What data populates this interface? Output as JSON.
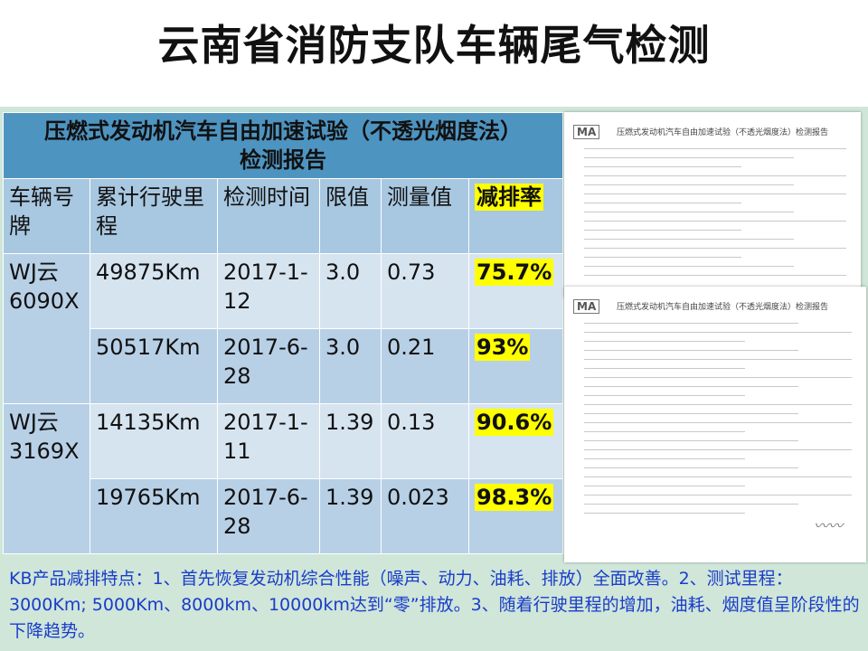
{
  "slide": {
    "title": "云南省消防支队车辆尾气检测"
  },
  "table": {
    "header_line1": "压燃式发动机汽车自由加速试验（不透光烟度法）",
    "header_line2": "检测报告",
    "columns": [
      "车辆号牌",
      "累计行驶里程",
      "检测时间",
      "限值",
      "测量值",
      "减排率"
    ],
    "vehicles": [
      {
        "plate": "WJ云6090X",
        "rows": [
          {
            "mileage": "49875Km",
            "date": "2017-1-12",
            "limit": "3.0",
            "measured": "0.73",
            "reduction": "75.7%"
          },
          {
            "mileage": "50517Km",
            "date": "2017-6-28",
            "limit": "3.0",
            "measured": "0.21",
            "reduction": "93%"
          }
        ]
      },
      {
        "plate": "WJ云3169X",
        "rows": [
          {
            "mileage": "14135Km",
            "date": "2017-1-11",
            "limit": "1.39",
            "measured": "0.13",
            "reduction": "90.6%"
          },
          {
            "mileage": "19765Km",
            "date": "2017-6-28",
            "limit": "1.39",
            "measured": "0.023",
            "reduction": "98.3%"
          }
        ]
      }
    ]
  },
  "report_images": {
    "logo_text": "MA",
    "title": "压燃式发动机汽车自由加速试验（不透光烟度法）检测报告"
  },
  "notes": "KB产品减排特点：1、首先恢复发动机综合性能（噪声、动力、油耗、排放）全面改善。2、测试里程：3000Km; 5000Km、8000km、10000km达到“零”排放。3、随着行驶里程的增加，油耗、烟度值呈阶段性的下降趋势。",
  "colors": {
    "header_bg": "#4e94c1",
    "col_header_bg": "#a8c7e0",
    "row_light": "#d6e4f0",
    "row_dark": "#b8d0e6",
    "highlight": "#ffff00",
    "note_text": "#1a3cc9",
    "slide_bg": "#cfe6d9"
  }
}
